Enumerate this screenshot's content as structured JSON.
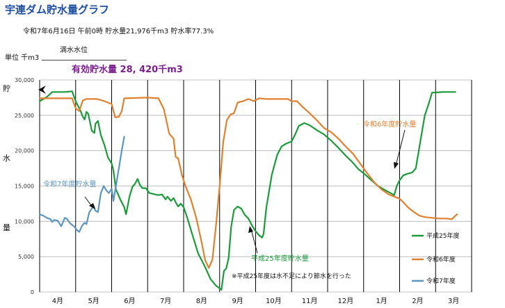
{
  "header": {
    "title": "宇連ダム貯水量グラフ",
    "subtitle": "令和7年6月16日 午前0時  貯水量21,976千m3  貯水率77.3%",
    "unit_label": "単位  千m3",
    "full_level_label": "満水水位",
    "effective_capacity": "有効貯水量 28, 420千m3"
  },
  "chart_data": {
    "type": "line",
    "ylabel_chars": [
      "貯",
      "水",
      "量"
    ],
    "ylim": [
      0,
      30000
    ],
    "yticks": [
      "0",
      "5,000",
      "10,000",
      "15,000",
      "20,000",
      "25,000",
      "30,000"
    ],
    "months": [
      "4月",
      "5月",
      "6月",
      "7月",
      "8月",
      "9月",
      "10月",
      "11月",
      "12月",
      "1月",
      "2月",
      "3月"
    ],
    "grid": true,
    "legend_position": "bottom-right",
    "colors": {
      "grid": "#b0b0b0",
      "vline": "#000000"
    },
    "series": [
      {
        "name": "平成25年度",
        "color": "#1a9a3a",
        "points": [
          [
            0,
            27000
          ],
          [
            0.2,
            27600
          ],
          [
            0.35,
            28300
          ],
          [
            0.7,
            28300
          ],
          [
            0.9,
            28400
          ],
          [
            1.0,
            27000
          ],
          [
            1.05,
            26500
          ],
          [
            1.12,
            25800
          ],
          [
            1.2,
            24800
          ],
          [
            1.25,
            24400
          ],
          [
            1.3,
            25500
          ],
          [
            1.35,
            25200
          ],
          [
            1.45,
            22800
          ],
          [
            1.52,
            22500
          ],
          [
            1.55,
            23800
          ],
          [
            1.62,
            24200
          ],
          [
            1.7,
            22200
          ],
          [
            1.8,
            20800
          ],
          [
            1.9,
            19000
          ],
          [
            2.0,
            18200
          ],
          [
            2.05,
            17200
          ],
          [
            2.12,
            14500
          ],
          [
            2.25,
            13000
          ],
          [
            2.35,
            12000
          ],
          [
            2.4,
            11000
          ],
          [
            2.5,
            13600
          ],
          [
            2.58,
            14900
          ],
          [
            2.65,
            15300
          ],
          [
            2.72,
            16000
          ],
          [
            2.78,
            15200
          ],
          [
            2.85,
            14700
          ],
          [
            2.95,
            14700
          ],
          [
            3.05,
            14000
          ],
          [
            3.3,
            13700
          ],
          [
            3.4,
            13800
          ],
          [
            3.5,
            13100
          ],
          [
            3.55,
            13500
          ],
          [
            3.65,
            12900
          ],
          [
            3.72,
            13300
          ],
          [
            3.8,
            12500
          ],
          [
            3.85,
            12100
          ],
          [
            3.92,
            12500
          ],
          [
            4.0,
            12000
          ],
          [
            4.1,
            10500
          ],
          [
            4.25,
            8000
          ],
          [
            4.4,
            5500
          ],
          [
            4.6,
            3500
          ],
          [
            4.75,
            1800
          ],
          [
            4.9,
            900
          ],
          [
            5.0,
            500
          ],
          [
            5.05,
            300
          ],
          [
            5.12,
            3000
          ],
          [
            5.18,
            3300
          ],
          [
            5.25,
            4800
          ],
          [
            5.32,
            9200
          ],
          [
            5.4,
            11600
          ],
          [
            5.5,
            12100
          ],
          [
            5.6,
            11800
          ],
          [
            5.7,
            10900
          ],
          [
            5.8,
            10400
          ],
          [
            5.9,
            9400
          ],
          [
            6.0,
            8600
          ],
          [
            6.1,
            8000
          ],
          [
            6.18,
            7700
          ],
          [
            6.22,
            8200
          ],
          [
            6.3,
            12000
          ],
          [
            6.45,
            16600
          ],
          [
            6.6,
            19400
          ],
          [
            6.72,
            20600
          ],
          [
            6.85,
            21000
          ],
          [
            7.0,
            21300
          ],
          [
            7.1,
            22300
          ],
          [
            7.2,
            23500
          ],
          [
            7.35,
            23900
          ],
          [
            7.5,
            23600
          ],
          [
            7.7,
            22900
          ],
          [
            7.9,
            22300
          ],
          [
            8.1,
            21400
          ],
          [
            8.3,
            20400
          ],
          [
            8.5,
            19300
          ],
          [
            8.7,
            18300
          ],
          [
            8.85,
            17400
          ],
          [
            9.0,
            16800
          ],
          [
            9.2,
            15900
          ],
          [
            9.4,
            15000
          ],
          [
            9.6,
            14400
          ],
          [
            9.75,
            14000
          ],
          [
            9.85,
            13700
          ],
          [
            9.92,
            15000
          ],
          [
            10.0,
            15800
          ],
          [
            10.1,
            16500
          ],
          [
            10.2,
            16700
          ],
          [
            10.35,
            16900
          ],
          [
            10.45,
            17500
          ],
          [
            10.6,
            22000
          ],
          [
            10.7,
            25000
          ],
          [
            10.8,
            26500
          ],
          [
            10.9,
            28200
          ],
          [
            11.2,
            28300
          ],
          [
            11.55,
            28300
          ]
        ]
      },
      {
        "name": "令和6年度",
        "color": "#e07f2e",
        "points": [
          [
            0,
            27400
          ],
          [
            0.5,
            27400
          ],
          [
            0.9,
            27400
          ],
          [
            1.0,
            26000
          ],
          [
            1.1,
            25600
          ],
          [
            1.2,
            27100
          ],
          [
            1.3,
            27300
          ],
          [
            1.6,
            27300
          ],
          [
            1.8,
            27000
          ],
          [
            2.0,
            26600
          ],
          [
            2.1,
            24700
          ],
          [
            2.2,
            24800
          ],
          [
            2.28,
            25600
          ],
          [
            2.35,
            27400
          ],
          [
            3.0,
            27500
          ],
          [
            3.3,
            27400
          ],
          [
            3.45,
            25900
          ],
          [
            3.6,
            22400
          ],
          [
            3.72,
            21700
          ],
          [
            3.78,
            19100
          ],
          [
            3.85,
            18900
          ],
          [
            3.95,
            16600
          ],
          [
            4.05,
            15000
          ],
          [
            4.2,
            13100
          ],
          [
            4.35,
            10500
          ],
          [
            4.5,
            7000
          ],
          [
            4.6,
            4500
          ],
          [
            4.7,
            3400
          ],
          [
            4.8,
            4600
          ],
          [
            4.9,
            9500
          ],
          [
            5.0,
            15000
          ],
          [
            5.1,
            21200
          ],
          [
            5.2,
            24300
          ],
          [
            5.3,
            25100
          ],
          [
            5.4,
            25300
          ],
          [
            5.5,
            26800
          ],
          [
            5.65,
            27000
          ],
          [
            5.8,
            27300
          ],
          [
            5.95,
            27000
          ],
          [
            6.1,
            27400
          ],
          [
            6.3,
            27300
          ],
          [
            6.6,
            27300
          ],
          [
            6.9,
            27300
          ],
          [
            7.0,
            27000
          ],
          [
            7.15,
            27000
          ],
          [
            7.3,
            26200
          ],
          [
            7.5,
            25300
          ],
          [
            7.7,
            24300
          ],
          [
            7.9,
            23200
          ],
          [
            8.1,
            22600
          ],
          [
            8.3,
            21700
          ],
          [
            8.5,
            20600
          ],
          [
            8.7,
            19600
          ],
          [
            8.9,
            18200
          ],
          [
            9.1,
            16800
          ],
          [
            9.3,
            15500
          ],
          [
            9.5,
            14500
          ],
          [
            9.7,
            13800
          ],
          [
            9.9,
            13400
          ],
          [
            10.0,
            13200
          ],
          [
            10.1,
            12700
          ],
          [
            10.25,
            11900
          ],
          [
            10.4,
            11300
          ],
          [
            10.55,
            10800
          ],
          [
            10.7,
            10600
          ],
          [
            10.9,
            10500
          ],
          [
            11.1,
            10400
          ],
          [
            11.3,
            10400
          ],
          [
            11.45,
            10300
          ],
          [
            11.55,
            10800
          ],
          [
            11.6,
            11000
          ]
        ]
      },
      {
        "name": "令和7年度",
        "color": "#5b95c0",
        "points": [
          [
            0,
            11000
          ],
          [
            0.1,
            10800
          ],
          [
            0.2,
            10500
          ],
          [
            0.3,
            10300
          ],
          [
            0.35,
            9900
          ],
          [
            0.4,
            10200
          ],
          [
            0.5,
            10100
          ],
          [
            0.6,
            9300
          ],
          [
            0.7,
            10500
          ],
          [
            0.75,
            10400
          ],
          [
            0.85,
            9700
          ],
          [
            0.95,
            9300
          ],
          [
            1.05,
            8700
          ],
          [
            1.1,
            8500
          ],
          [
            1.18,
            9400
          ],
          [
            1.25,
            9800
          ],
          [
            1.3,
            9600
          ],
          [
            1.38,
            11300
          ],
          [
            1.45,
            11800
          ],
          [
            1.5,
            12200
          ],
          [
            1.55,
            11500
          ],
          [
            1.62,
            11300
          ],
          [
            1.7,
            14000
          ],
          [
            1.78,
            15000
          ],
          [
            1.85,
            14400
          ],
          [
            1.92,
            14000
          ],
          [
            2.0,
            14600
          ],
          [
            2.05,
            12900
          ],
          [
            2.12,
            15000
          ],
          [
            2.2,
            17500
          ],
          [
            2.28,
            20000
          ],
          [
            2.35,
            21976
          ]
        ]
      }
    ],
    "annotations": [
      {
        "text": "令和7年度貯水量",
        "color": "#5b95c0"
      },
      {
        "text": "令和6年度貯水量",
        "color": "#e07f2e"
      },
      {
        "text": "平成25年度貯水量",
        "color": "#1a9a3a"
      },
      {
        "text": "※平成25年度は水不足により節水を行った",
        "color": "#111111"
      }
    ]
  }
}
